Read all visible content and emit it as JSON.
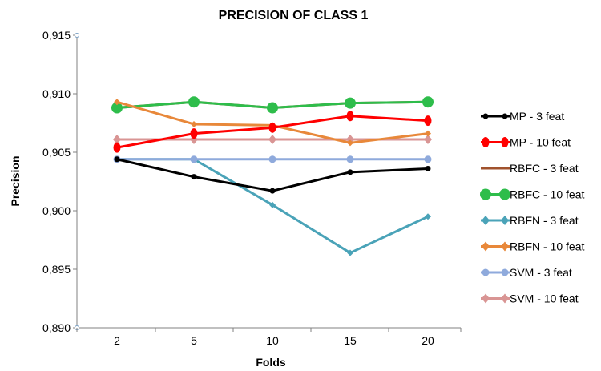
{
  "chart_data": {
    "type": "line",
    "title": "PRECISION OF CLASS 1",
    "xlabel": "Folds",
    "ylabel": "Precision",
    "categories": [
      "2",
      "5",
      "10",
      "15",
      "20"
    ],
    "ylim": [
      0.89,
      0.915
    ],
    "yticks": [
      "0,890",
      "0,895",
      "0,900",
      "0,905",
      "0,910",
      "0,915"
    ],
    "grid": false,
    "legend_position": "right",
    "series": [
      {
        "name": "MP - 3 feat",
        "values": [
          0.9044,
          0.9029,
          0.9017,
          0.9033,
          0.9036
        ],
        "color": "#000000",
        "marker": "dot-small"
      },
      {
        "name": "MP - 10 feat",
        "values": [
          0.9054,
          0.9066,
          0.9071,
          0.9081,
          0.9077
        ],
        "color": "#ff0000",
        "marker": "ellipse"
      },
      {
        "name": "RBFC - 3 feat",
        "values": [
          0.9088,
          0.9093,
          0.9088,
          0.9092,
          0.9093
        ],
        "color": "#a0522d",
        "marker": "none"
      },
      {
        "name": "RBFC - 10 feat",
        "values": [
          0.9088,
          0.9093,
          0.9088,
          0.9092,
          0.9093
        ],
        "color": "#2ebd4b",
        "marker": "big-dot"
      },
      {
        "name": "RBFN - 3 feat",
        "values": [
          0.9044,
          0.9044,
          0.9005,
          0.8964,
          0.8995
        ],
        "color": "#4aa3b8",
        "marker": "diamond-small"
      },
      {
        "name": "RBFN - 10 feat",
        "values": [
          0.9093,
          0.9074,
          0.9073,
          0.9058,
          0.9066
        ],
        "color": "#e8883a",
        "marker": "diamond-small"
      },
      {
        "name": "SVM - 3 feat",
        "values": [
          0.9044,
          0.9044,
          0.9044,
          0.9044,
          0.9044
        ],
        "color": "#8faadc",
        "marker": "dot"
      },
      {
        "name": "SVM - 10 feat",
        "values": [
          0.9061,
          0.9061,
          0.9061,
          0.9061,
          0.9061
        ],
        "color": "#d99594",
        "marker": "diamond"
      }
    ]
  }
}
